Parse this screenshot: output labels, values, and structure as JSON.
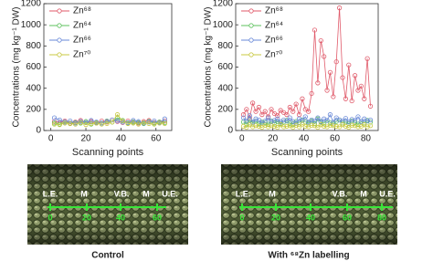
{
  "chart_data": [
    {
      "type": "line",
      "y_label": "Concentrations (mg kg⁻¹ DW)",
      "x_label": "Scanning points",
      "x": [
        2,
        5,
        8,
        11,
        14,
        17,
        20,
        23,
        26,
        29,
        32,
        35,
        38,
        41,
        44,
        47,
        50,
        53,
        56,
        59,
        62,
        65
      ],
      "series": [
        {
          "name": "Zn⁶⁸",
          "color": "#e05a6a",
          "values": [
            85,
            75,
            90,
            70,
            80,
            95,
            75,
            85,
            70,
            90,
            80,
            100,
            85,
            75,
            90,
            80,
            70,
            85,
            95,
            75,
            80,
            90
          ]
        },
        {
          "name": "Zn⁶⁴",
          "color": "#5cc05c",
          "values": [
            70,
            60,
            80,
            65,
            75,
            70,
            85,
            60,
            75,
            70,
            90,
            80,
            120,
            95,
            70,
            80,
            75,
            65,
            85,
            70,
            80,
            75
          ]
        },
        {
          "name": "Zn⁶⁶",
          "color": "#6a8ad8",
          "values": [
            120,
            100,
            80,
            90,
            70,
            85,
            75,
            95,
            80,
            70,
            85,
            100,
            90,
            80,
            75,
            95,
            85,
            70,
            80,
            90,
            75,
            110
          ]
        },
        {
          "name": "Zn⁷⁰",
          "color": "#c8c840",
          "values": [
            60,
            55,
            70,
            65,
            60,
            75,
            55,
            65,
            70,
            60,
            65,
            80,
            150,
            90,
            65,
            70,
            60,
            75,
            65,
            60,
            70,
            65
          ]
        }
      ],
      "xlim": [
        -4,
        69
      ],
      "ylim": [
        0,
        1200
      ],
      "xticks": [
        0,
        20,
        40,
        60
      ],
      "yticks": [
        0,
        200,
        400,
        600,
        800,
        1000,
        1200
      ]
    },
    {
      "type": "line",
      "y_label": "Concentrations (mg kg⁻¹ DW)",
      "x_label": "Scanning points",
      "x": [
        1,
        3,
        5,
        7,
        9,
        11,
        13,
        15,
        17,
        19,
        21,
        23,
        25,
        27,
        29,
        31,
        33,
        35,
        37,
        39,
        41,
        43,
        45,
        47,
        49,
        51,
        53,
        55,
        57,
        59,
        61,
        63,
        65,
        67,
        69,
        71,
        73,
        75,
        77,
        79,
        81,
        83
      ],
      "series": [
        {
          "name": "Zn⁶⁸",
          "color": "#e05a6a",
          "values": [
            150,
            200,
            120,
            260,
            180,
            220,
            150,
            180,
            130,
            200,
            160,
            140,
            190,
            170,
            150,
            220,
            180,
            250,
            150,
            300,
            200,
            180,
            350,
            950,
            450,
            850,
            700,
            380,
            550,
            320,
            650,
            1160,
            500,
            300,
            620,
            280,
            520,
            380,
            420,
            300,
            680,
            230
          ]
        },
        {
          "name": "Zn⁶⁴",
          "color": "#5cc05c",
          "values": [
            80,
            60,
            100,
            70,
            90,
            65,
            80,
            75,
            60,
            90,
            70,
            85,
            65,
            80,
            95,
            70,
            60,
            85,
            75,
            100,
            80,
            70,
            90,
            65,
            110,
            80,
            70,
            95,
            75,
            60,
            85,
            100,
            70,
            80,
            65,
            90,
            75,
            60,
            85,
            70,
            95,
            80
          ]
        },
        {
          "name": "Zn⁶⁶",
          "color": "#6a8ad8",
          "values": [
            120,
            90,
            140,
            80,
            110,
            100,
            70,
            90,
            120,
            85,
            95,
            110,
            80,
            100,
            90,
            120,
            85,
            70,
            110,
            95,
            130,
            80,
            100,
            90,
            120,
            85,
            110,
            95,
            150,
            80,
            120,
            100,
            90,
            115,
            80,
            105,
            95,
            130,
            85,
            110,
            90,
            100
          ]
        },
        {
          "name": "Zn⁷⁰",
          "color": "#c8c840",
          "values": [
            40,
            30,
            55,
            35,
            45,
            40,
            30,
            50,
            35,
            45,
            40,
            30,
            55,
            35,
            40,
            45,
            30,
            50,
            35,
            60,
            40,
            35,
            50,
            45,
            30,
            55,
            40,
            35,
            50,
            45,
            40,
            35,
            55,
            40,
            30,
            50,
            45,
            35,
            40,
            55,
            35,
            45
          ]
        }
      ],
      "xlim": [
        -4,
        88
      ],
      "ylim": [
        0,
        1200
      ],
      "xticks": [
        0,
        20,
        40,
        60,
        80
      ],
      "yticks": [
        0,
        200,
        400,
        600,
        800,
        1000,
        1200
      ]
    }
  ],
  "panels": [
    {
      "caption": "Control",
      "regions": [
        "L.E.",
        "M",
        "V.B.",
        "M",
        "U.E."
      ],
      "scale": [
        0,
        20,
        40,
        60
      ]
    },
    {
      "caption": "With ⁶⁸Zn labelling",
      "regions": [
        "L.E.",
        "M",
        "V.B.",
        "M",
        "U.E."
      ],
      "scale": [
        0,
        20,
        40,
        60,
        80
      ]
    }
  ]
}
